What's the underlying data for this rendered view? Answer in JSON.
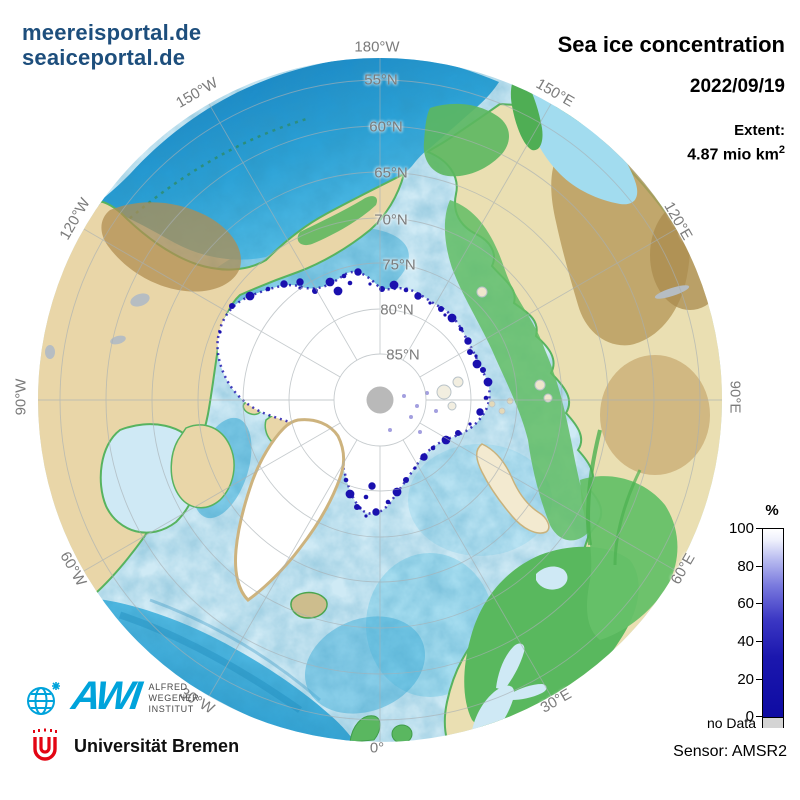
{
  "branding": {
    "line1": "meereisportal.de",
    "line2": "seaiceportal.de"
  },
  "header": {
    "title": "Sea ice concentration",
    "date": "2022/09/19",
    "extent_label": "Extent:",
    "extent_value": "4.87 mio km",
    "extent_sup": "2"
  },
  "graticule": {
    "longitude_labels": [
      "180°W",
      "150°W",
      "120°W",
      "90°W",
      "60°W",
      "30°W",
      "0°",
      "30°E",
      "60°E",
      "90°E",
      "120°E",
      "150°E"
    ],
    "latitude_labels": [
      "55°N",
      "60°N",
      "65°N",
      "70°N",
      "75°N",
      "80°N",
      "85°N"
    ]
  },
  "colorbar": {
    "unit": "%",
    "ticks": [
      "100",
      "80",
      "60",
      "40",
      "20",
      "0"
    ],
    "no_data_label": "no Data"
  },
  "footer": {
    "sensor_label": "Sensor: AMSR2"
  },
  "logos": {
    "awi": {
      "acronym": "AWI",
      "institute_lines": [
        "ALFRED",
        "WEGENER",
        "INSTITUT"
      ]
    },
    "bremen": {
      "name": "Universität Bremen"
    }
  },
  "colors": {
    "brand_blue": "#1d4e7c",
    "awi_blue": "#00a3db",
    "bremen_red": "#e30513",
    "ice_color": "#ffffff",
    "ice_edge_navy": "#1a10ae",
    "no_data_gray": "#d4d4d4",
    "ocean_shallow": "#cfeaf5",
    "ocean_deep": "#1787c4",
    "land_tan": "#e9d6a8",
    "land_green": "#59b85e",
    "graticule_gray": "#a8b0b4"
  }
}
